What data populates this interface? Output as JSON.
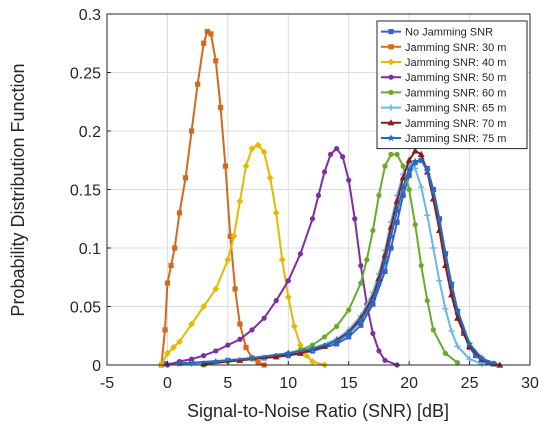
{
  "chart_data": {
    "type": "line",
    "title": "",
    "xlabel": "Signal-to-Noise Ratio (SNR) [dB]",
    "ylabel": "Probability Distribution Function",
    "xlim": [
      -5,
      30
    ],
    "ylim": [
      0,
      0.3
    ],
    "xticks": [
      -5,
      0,
      5,
      10,
      15,
      20,
      25,
      30
    ],
    "yticks": [
      0,
      0.05,
      0.1,
      0.15,
      0.2,
      0.25,
      0.3
    ],
    "xtick_labels": [
      "-5",
      "0",
      "5",
      "10",
      "15",
      "20",
      "25",
      "30"
    ],
    "ytick_labels": [
      "0",
      "0.05",
      "0.1",
      "0.15",
      "0.2",
      "0.25",
      "0.3"
    ],
    "grid": true,
    "legend_position": "top-right",
    "series": [
      {
        "name": "No Jamming SNR",
        "color": "#3a5fcd",
        "marker": "square",
        "x": [
          -0.2,
          2,
          5,
          8,
          10,
          12,
          14,
          15,
          16,
          17,
          18,
          18.5,
          19,
          19.5,
          20,
          20.5,
          21,
          21.5,
          22,
          22.5,
          23,
          23.5,
          24,
          24.5,
          25,
          25.5,
          26,
          26.5,
          27
        ],
        "y": [
          0.001,
          0.002,
          0.004,
          0.006,
          0.008,
          0.012,
          0.018,
          0.024,
          0.034,
          0.052,
          0.08,
          0.1,
          0.122,
          0.145,
          0.162,
          0.173,
          0.175,
          0.168,
          0.15,
          0.125,
          0.095,
          0.068,
          0.045,
          0.027,
          0.015,
          0.008,
          0.004,
          0.002,
          0.001
        ]
      },
      {
        "name": "Jamming SNR: 30 m",
        "color": "#d2691e",
        "marker": "square",
        "x": [
          -0.5,
          -0.2,
          0,
          0.3,
          0.6,
          1,
          1.5,
          2,
          2.5,
          3,
          3.3,
          3.6,
          4,
          4.4,
          4.8,
          5.2,
          5.6,
          6,
          6.5,
          7,
          7.5,
          8
        ],
        "y": [
          0.0,
          0.03,
          0.07,
          0.085,
          0.1,
          0.13,
          0.16,
          0.2,
          0.24,
          0.275,
          0.285,
          0.283,
          0.26,
          0.22,
          0.17,
          0.11,
          0.065,
          0.035,
          0.015,
          0.006,
          0.002,
          0.0
        ]
      },
      {
        "name": "Jamming SNR: 40 m",
        "color": "#e6b800",
        "marker": "diamond",
        "x": [
          -0.5,
          0,
          0.5,
          1,
          2,
          3,
          4,
          5,
          5.5,
          6,
          6.5,
          7,
          7.5,
          8,
          8.5,
          9,
          9.5,
          10,
          10.5,
          11,
          11.5,
          12,
          13
        ],
        "y": [
          0.0,
          0.01,
          0.015,
          0.02,
          0.035,
          0.05,
          0.065,
          0.09,
          0.11,
          0.14,
          0.17,
          0.185,
          0.188,
          0.182,
          0.16,
          0.13,
          0.09,
          0.058,
          0.033,
          0.017,
          0.008,
          0.003,
          0.0
        ]
      },
      {
        "name": "Jamming SNR: 50 m",
        "color": "#7d2ea0",
        "marker": "circle",
        "x": [
          0,
          1,
          2,
          3,
          4,
          5,
          6,
          7,
          8,
          9,
          10,
          11,
          12,
          12.5,
          13,
          13.5,
          14,
          14.5,
          15,
          15.5,
          16,
          16.5,
          17,
          17.5,
          18,
          19
        ],
        "y": [
          0.0,
          0.003,
          0.005,
          0.008,
          0.012,
          0.017,
          0.022,
          0.03,
          0.04,
          0.055,
          0.072,
          0.095,
          0.125,
          0.145,
          0.165,
          0.18,
          0.185,
          0.178,
          0.158,
          0.125,
          0.085,
          0.052,
          0.027,
          0.012,
          0.004,
          0.0
        ]
      },
      {
        "name": "Jamming SNR: 60 m",
        "color": "#6aaa2a",
        "marker": "circle",
        "x": [
          3,
          5,
          7,
          9,
          10,
          11,
          12,
          13,
          14,
          15,
          16,
          16.5,
          17,
          17.5,
          18,
          18.5,
          19,
          19.5,
          20,
          20.5,
          21,
          21.5,
          22,
          23,
          24
        ],
        "y": [
          0.0,
          0.003,
          0.005,
          0.008,
          0.01,
          0.013,
          0.017,
          0.024,
          0.033,
          0.047,
          0.07,
          0.09,
          0.115,
          0.145,
          0.17,
          0.18,
          0.18,
          0.17,
          0.15,
          0.12,
          0.085,
          0.055,
          0.03,
          0.01,
          0.002
        ]
      },
      {
        "name": "Jamming SNR: 65 m",
        "color": "#6ab4f0",
        "marker": "plus",
        "x": [
          2,
          5,
          8,
          10,
          12,
          14,
          15,
          16,
          17,
          17.5,
          18,
          18.5,
          19,
          19.5,
          20,
          20.5,
          21,
          21.5,
          22,
          22.5,
          23,
          23.5,
          24,
          25,
          26
        ],
        "y": [
          0.001,
          0.003,
          0.006,
          0.01,
          0.014,
          0.022,
          0.03,
          0.042,
          0.062,
          0.078,
          0.098,
          0.122,
          0.145,
          0.163,
          0.172,
          0.168,
          0.152,
          0.128,
          0.1,
          0.072,
          0.048,
          0.029,
          0.016,
          0.005,
          0.001
        ]
      },
      {
        "name": "Jamming SNR: 70 m",
        "color": "#8b1a1a",
        "marker": "triangle",
        "x": [
          3,
          6,
          9,
          11,
          13,
          14,
          15,
          16,
          17,
          17.5,
          18,
          18.5,
          19,
          19.5,
          20,
          20.5,
          21,
          21.5,
          22,
          22.5,
          23,
          23.5,
          24,
          25,
          26,
          27,
          27.5
        ],
        "y": [
          0.001,
          0.004,
          0.007,
          0.01,
          0.016,
          0.021,
          0.028,
          0.04,
          0.058,
          0.074,
          0.094,
          0.118,
          0.14,
          0.16,
          0.175,
          0.183,
          0.18,
          0.165,
          0.142,
          0.115,
          0.085,
          0.06,
          0.04,
          0.016,
          0.005,
          0.001,
          0.0
        ]
      },
      {
        "name": "Jamming SNR: 75 m",
        "color": "#1f6fc0",
        "marker": "star",
        "x": [
          1,
          4,
          7,
          10,
          12,
          14,
          15,
          16,
          17,
          17.5,
          18,
          18.5,
          19,
          19.5,
          20,
          20.5,
          21,
          21.5,
          22,
          22.5,
          23,
          23.5,
          24,
          25,
          26,
          27
        ],
        "y": [
          0.001,
          0.003,
          0.006,
          0.01,
          0.014,
          0.02,
          0.027,
          0.038,
          0.055,
          0.07,
          0.088,
          0.11,
          0.132,
          0.152,
          0.167,
          0.174,
          0.175,
          0.166,
          0.148,
          0.124,
          0.096,
          0.07,
          0.047,
          0.018,
          0.006,
          0.001
        ]
      }
    ]
  }
}
